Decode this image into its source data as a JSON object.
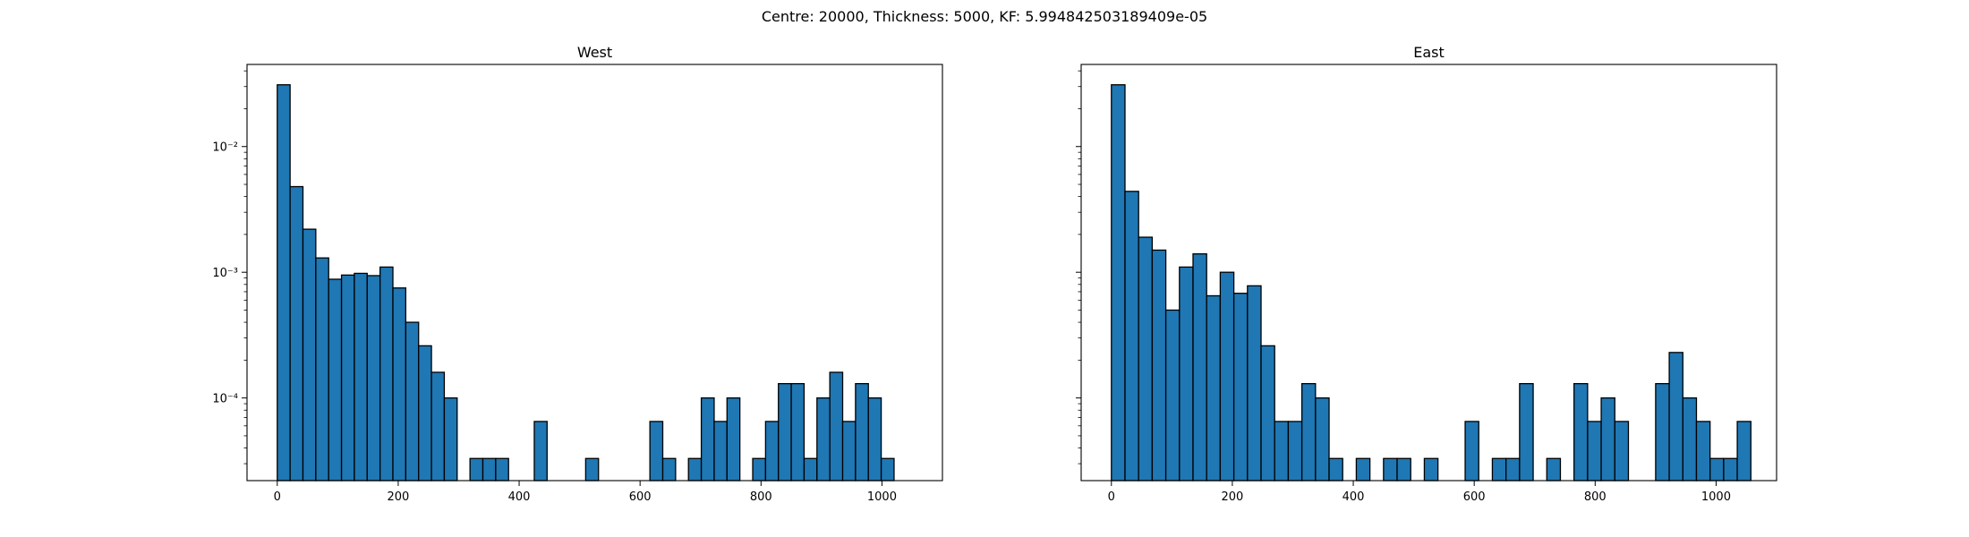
{
  "suptitle": "Centre: 20000, Thickness: 5000, KF: 5.994842503189409e-05",
  "chart_data": [
    {
      "type": "bar",
      "title": "West",
      "xlabel": "",
      "ylabel": "",
      "yscale": "log",
      "xlim": [
        -50,
        1100
      ],
      "ylim": [
        2.2e-05,
        0.045
      ],
      "xticks": [
        0,
        200,
        400,
        600,
        800,
        1000
      ],
      "yticks": [
        0.0001,
        0.001,
        0.01
      ],
      "ytick_labels": [
        "10⁻⁴",
        "10⁻³",
        "10⁻²"
      ],
      "bar_color": "#1f77b4",
      "bin_width": 21.25,
      "bins_start": [
        0,
        21.25,
        42.5,
        63.75,
        85,
        106.25,
        127.5,
        148.75,
        170,
        191.25,
        212.5,
        233.75,
        255,
        276.25,
        318.75,
        340,
        361.25,
        425,
        510,
        616.25,
        637.5,
        680,
        701.25,
        722.5,
        743.75,
        786.25,
        807.5,
        828.75,
        850,
        871.25,
        892.5,
        913.75,
        935,
        956.25,
        977.5,
        998.75
      ],
      "values": [
        0.031,
        0.0048,
        0.0022,
        0.0013,
        0.00088,
        0.00095,
        0.00098,
        0.00094,
        0.0011,
        0.00075,
        0.0004,
        0.00026,
        0.00016,
        0.0001,
        3.3e-05,
        3.3e-05,
        3.3e-05,
        6.5e-05,
        3.3e-05,
        6.5e-05,
        3.3e-05,
        3.3e-05,
        0.0001,
        6.5e-05,
        0.0001,
        3.3e-05,
        6.5e-05,
        0.00013,
        0.00013,
        3.3e-05,
        0.0001,
        0.00016,
        6.5e-05,
        0.00013,
        0.0001,
        3.3e-05
      ]
    },
    {
      "type": "bar",
      "title": "East",
      "xlabel": "",
      "ylabel": "",
      "yscale": "log",
      "xlim": [
        -50,
        1100
      ],
      "ylim": [
        2.2e-05,
        0.045
      ],
      "xticks": [
        0,
        200,
        400,
        600,
        800,
        1000
      ],
      "yticks": [
        0.0001,
        0.001,
        0.01
      ],
      "ytick_labels": [
        "",
        "",
        ""
      ],
      "bar_color": "#1f77b4",
      "bin_width": 22.5,
      "bins_start": [
        0,
        22.5,
        45,
        67.5,
        90,
        112.5,
        135,
        157.5,
        180,
        202.5,
        225,
        247.5,
        270,
        292.5,
        315,
        337.5,
        360,
        405,
        450,
        472.5,
        517.5,
        585,
        630,
        652.5,
        675,
        720,
        765,
        787.5,
        810,
        832.5,
        900,
        922.5,
        945,
        967.5,
        990,
        1012.5,
        1035
      ],
      "values": [
        0.031,
        0.0044,
        0.0019,
        0.0015,
        0.0005,
        0.0011,
        0.0014,
        0.00065,
        0.001,
        0.00068,
        0.00078,
        0.00026,
        6.5e-05,
        6.5e-05,
        0.00013,
        0.0001,
        3.3e-05,
        3.3e-05,
        3.3e-05,
        3.3e-05,
        3.3e-05,
        6.5e-05,
        3.3e-05,
        3.3e-05,
        0.00013,
        3.3e-05,
        0.00013,
        6.5e-05,
        0.0001,
        6.5e-05,
        0.00013,
        0.00023,
        0.0001,
        6.5e-05,
        3.3e-05,
        3.3e-05,
        6.5e-05
      ]
    }
  ]
}
